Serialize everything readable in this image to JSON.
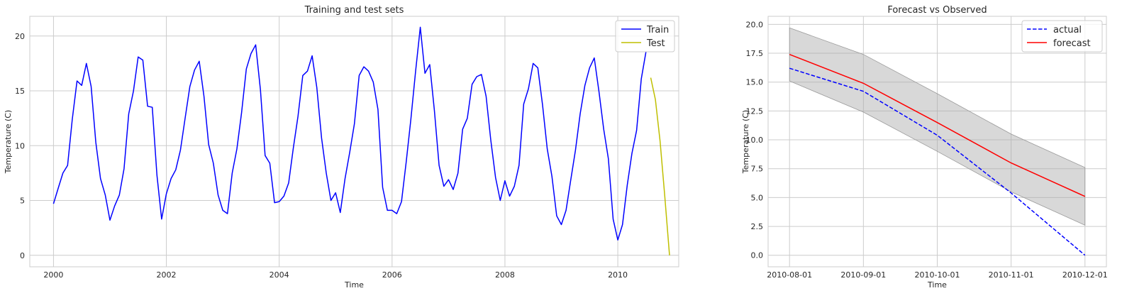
{
  "chart_data": [
    {
      "type": "line",
      "title": "Training and test sets",
      "xlabel": "Time",
      "ylabel": "Temperature (C)",
      "xlim": [
        1999.58,
        2011.08
      ],
      "ylim": [
        -1.05,
        21.8
      ],
      "xticks": [
        2000,
        2002,
        2004,
        2006,
        2008,
        2010
      ],
      "xtick_labels": [
        "2000",
        "2002",
        "2004",
        "2006",
        "2008",
        "2010"
      ],
      "yticks": [
        0,
        5,
        10,
        15,
        20
      ],
      "ytick_labels": [
        "0",
        "5",
        "10",
        "15",
        "20"
      ],
      "grid": true,
      "legend": "top-right",
      "series": [
        {
          "name": "Train",
          "color": "#0000ff",
          "x": [
            2000.0,
            2000.083,
            2000.167,
            2000.25,
            2000.333,
            2000.417,
            2000.5,
            2000.583,
            2000.667,
            2000.75,
            2000.833,
            2000.917,
            2001.0,
            2001.083,
            2001.167,
            2001.25,
            2001.333,
            2001.417,
            2001.5,
            2001.583,
            2001.667,
            2001.75,
            2001.833,
            2001.917,
            2002.0,
            2002.083,
            2002.167,
            2002.25,
            2002.333,
            2002.417,
            2002.5,
            2002.583,
            2002.667,
            2002.75,
            2002.833,
            2002.917,
            2003.0,
            2003.083,
            2003.167,
            2003.25,
            2003.333,
            2003.417,
            2003.5,
            2003.583,
            2003.667,
            2003.75,
            2003.833,
            2003.917,
            2004.0,
            2004.083,
            2004.167,
            2004.25,
            2004.333,
            2004.417,
            2004.5,
            2004.583,
            2004.667,
            2004.75,
            2004.833,
            2004.917,
            2005.0,
            2005.083,
            2005.167,
            2005.25,
            2005.333,
            2005.417,
            2005.5,
            2005.583,
            2005.667,
            2005.75,
            2005.833,
            2005.917,
            2006.0,
            2006.083,
            2006.167,
            2006.25,
            2006.333,
            2006.417,
            2006.5,
            2006.583,
            2006.667,
            2006.75,
            2006.833,
            2006.917,
            2007.0,
            2007.083,
            2007.167,
            2007.25,
            2007.333,
            2007.417,
            2007.5,
            2007.583,
            2007.667,
            2007.75,
            2007.833,
            2007.917,
            2008.0,
            2008.083,
            2008.167,
            2008.25,
            2008.333,
            2008.417,
            2008.5,
            2008.583,
            2008.667,
            2008.75,
            2008.833,
            2008.917,
            2009.0,
            2009.083,
            2009.167,
            2009.25,
            2009.333,
            2009.417,
            2009.5,
            2009.583,
            2009.667,
            2009.75,
            2009.833,
            2009.917,
            2010.0,
            2010.083,
            2010.167,
            2010.25,
            2010.333,
            2010.417,
            2010.5
          ],
          "y": [
            4.7,
            6.1,
            7.5,
            8.2,
            12.4,
            15.9,
            15.5,
            17.5,
            15.4,
            10.3,
            7.0,
            5.5,
            3.2,
            4.5,
            5.5,
            7.9,
            12.9,
            15.0,
            18.1,
            17.8,
            13.6,
            13.5,
            7.3,
            3.3,
            5.6,
            7.0,
            7.8,
            9.6,
            12.5,
            15.4,
            16.9,
            17.7,
            14.5,
            10.1,
            8.4,
            5.5,
            4.1,
            3.8,
            7.5,
            9.7,
            13.0,
            17.0,
            18.4,
            19.2,
            15.1,
            9.1,
            8.4,
            4.8,
            4.9,
            5.4,
            6.6,
            9.8,
            12.7,
            16.4,
            16.8,
            18.2,
            15.3,
            10.7,
            7.5,
            5.0,
            5.7,
            3.9,
            7.0,
            9.4,
            12.0,
            16.4,
            17.2,
            16.8,
            15.8,
            13.3,
            6.2,
            4.1,
            4.1,
            3.8,
            4.9,
            8.5,
            12.4,
            16.8,
            20.8,
            16.6,
            17.4,
            13.2,
            8.2,
            6.3,
            6.9,
            6.0,
            7.5,
            11.5,
            12.5,
            15.6,
            16.3,
            16.5,
            14.5,
            10.5,
            7.1,
            5.0,
            6.8,
            5.4,
            6.3,
            8.2,
            13.8,
            15.2,
            17.5,
            17.1,
            13.7,
            9.7,
            7.2,
            3.6,
            2.8,
            4.1,
            6.9,
            9.6,
            12.9,
            15.5,
            17.1,
            18.0,
            14.9,
            11.5,
            8.8,
            3.3,
            1.4,
            2.8,
            6.4,
            9.3,
            11.4,
            16.1,
            18.6
          ]
        },
        {
          "name": "Test",
          "color": "#bfbf00",
          "x": [
            2010.583,
            2010.667,
            2010.75,
            2010.833,
            2010.917
          ],
          "y": [
            16.2,
            14.2,
            10.4,
            5.4,
            0.0
          ]
        }
      ]
    },
    {
      "type": "line",
      "title": "Forecast vs Observed",
      "xlabel": "Time",
      "ylabel": "Temperature (C)",
      "categories": [
        "2010-08-01",
        "2010-09-01",
        "2010-10-01",
        "2010-11-01",
        "2010-12-01"
      ],
      "xlim": [
        -0.29,
        4.29
      ],
      "ylim": [
        -1.0,
        20.7
      ],
      "yticks": [
        0.0,
        2.5,
        5.0,
        7.5,
        10.0,
        12.5,
        15.0,
        17.5,
        20.0
      ],
      "ytick_labels": [
        "0.0",
        "2.5",
        "5.0",
        "7.5",
        "10.0",
        "12.5",
        "15.0",
        "17.5",
        "20.0"
      ],
      "grid": true,
      "legend": "top-right",
      "series": [
        {
          "name": "actual",
          "color": "#0000ff",
          "style": "dashed",
          "values": [
            16.2,
            14.2,
            10.4,
            5.4,
            0.0
          ]
        },
        {
          "name": "forecast",
          "color": "#ff0000",
          "style": "solid",
          "values": [
            17.4,
            14.9,
            11.5,
            8.0,
            5.1
          ]
        }
      ],
      "interval": {
        "color": "#a9a9a9",
        "lower": [
          15.1,
          12.4,
          9.0,
          5.5,
          2.6
        ],
        "upper": [
          19.7,
          17.4,
          14.0,
          10.5,
          7.6
        ]
      }
    }
  ]
}
